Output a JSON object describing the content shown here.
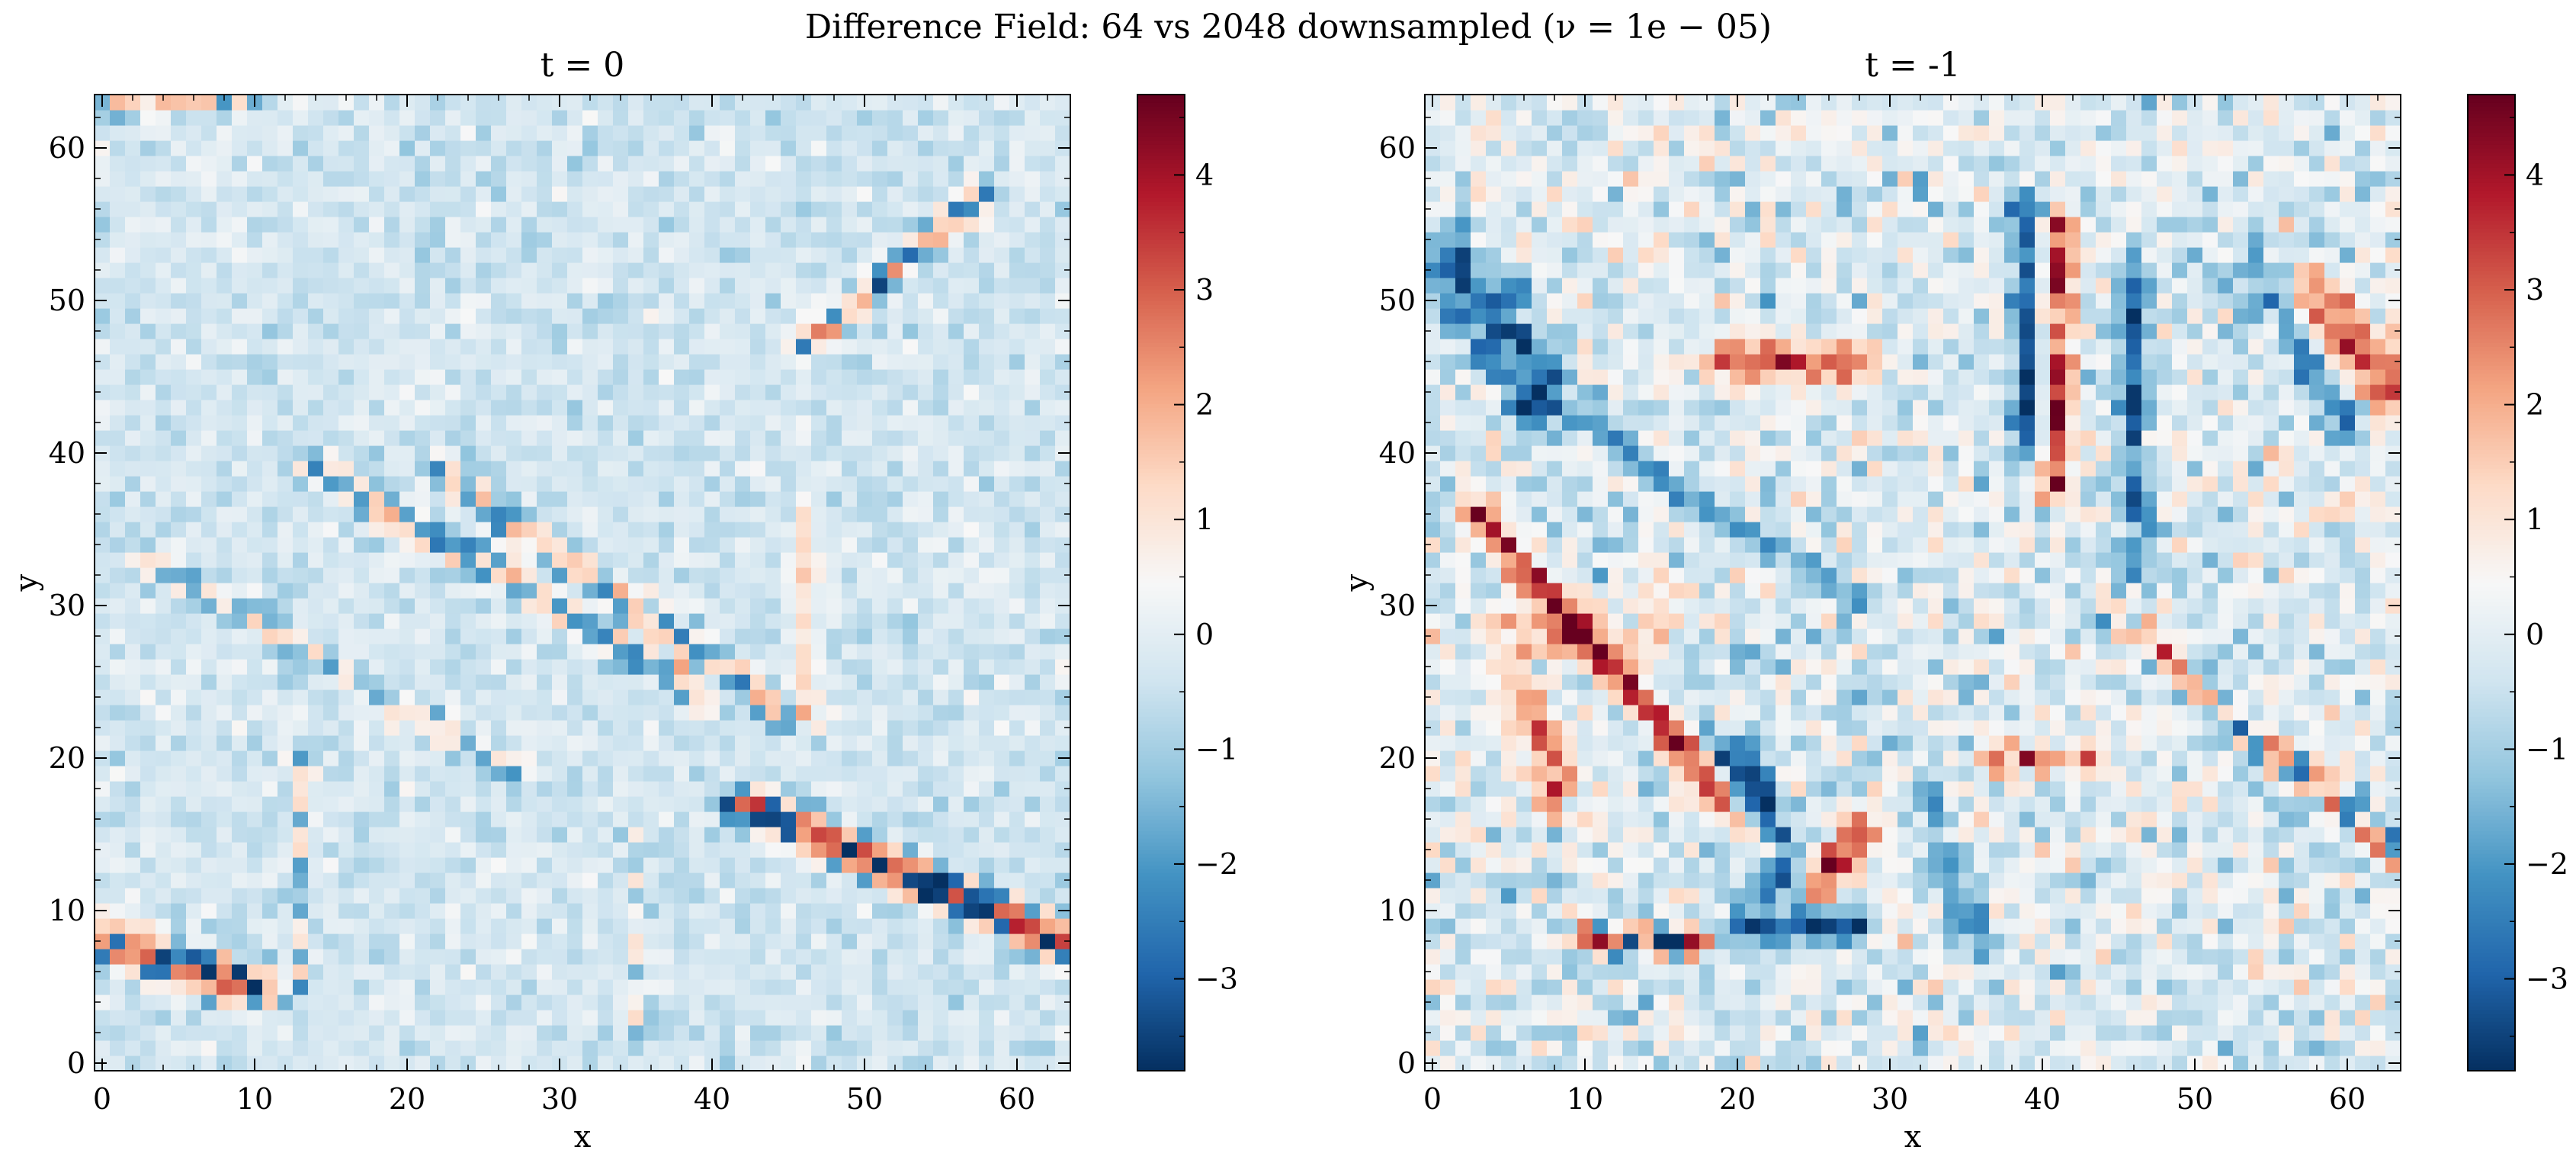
{
  "figure": {
    "suptitle": "Difference Field: 64 vs 2048 downsampled (ν = 1e − 05)"
  },
  "colors": {
    "colormap": "RdBu_r",
    "stops": [
      "#053061",
      "#2166ac",
      "#4393c3",
      "#92c5de",
      "#d1e5f0",
      "#f7f7f7",
      "#fddbc7",
      "#f4a582",
      "#d6604d",
      "#b2182b",
      "#67001f"
    ]
  },
  "chart_data": [
    {
      "type": "heatmap",
      "title": "t = 0",
      "xlabel": "x",
      "ylabel": "y",
      "grid_size": [
        64,
        64
      ],
      "xlim": [
        -0.5,
        63.5
      ],
      "ylim": [
        -0.5,
        63.5
      ],
      "xticks": [
        0,
        10,
        20,
        30,
        40,
        50,
        60
      ],
      "yticks": [
        0,
        10,
        20,
        30,
        40,
        50,
        60
      ],
      "colorbar": {
        "vmin": -3.8,
        "vmax": 4.7,
        "ticks": [
          -3,
          -2,
          -1,
          0,
          1,
          2,
          3,
          4
        ],
        "tick_labels": [
          "−3",
          "−2",
          "−1",
          "0",
          "1",
          "2",
          "3",
          "4"
        ]
      },
      "features": [
        {
          "kind": "ridge",
          "from": [
            0,
            8
          ],
          "to": [
            10,
            5
          ],
          "width": 1.2,
          "amp": 3.6,
          "polarity": "mixed"
        },
        {
          "kind": "ridge",
          "from": [
            42,
            17
          ],
          "to": [
            63,
            8
          ],
          "width": 1.0,
          "amp": 4.2,
          "polarity": "mixed"
        },
        {
          "kind": "ridge",
          "from": [
            14,
            39
          ],
          "to": [
            40,
            24
          ],
          "width": 0.9,
          "amp": 2.2,
          "polarity": "mixed"
        },
        {
          "kind": "ridge",
          "from": [
            22,
            39
          ],
          "to": [
            46,
            22
          ],
          "width": 0.9,
          "amp": 2.2,
          "polarity": "mixed"
        },
        {
          "kind": "ridge",
          "from": [
            3,
            33
          ],
          "to": [
            27,
            19
          ],
          "width": 0.8,
          "amp": 1.6,
          "polarity": "mixed"
        },
        {
          "kind": "ridge",
          "from": [
            46,
            47
          ],
          "to": [
            58,
            57
          ],
          "width": 0.8,
          "amp": 2.6,
          "polarity": "mixed"
        },
        {
          "kind": "ridge",
          "from": [
            46,
            36
          ],
          "to": [
            46,
            22
          ],
          "width": 0.6,
          "amp": 2.0,
          "polarity": "pos"
        },
        {
          "kind": "ridge",
          "from": [
            35,
            15
          ],
          "to": [
            35,
            2
          ],
          "width": 0.6,
          "amp": 1.2,
          "polarity": "mixed"
        },
        {
          "kind": "ridge",
          "from": [
            13,
            20
          ],
          "to": [
            13,
            5
          ],
          "width": 0.6,
          "amp": 1.6,
          "polarity": "mixed"
        },
        {
          "kind": "ridge",
          "from": [
            0,
            63
          ],
          "to": [
            10,
            63
          ],
          "width": 0.7,
          "amp": 2.0,
          "polarity": "mixed"
        }
      ],
      "background": {
        "bias": -0.35,
        "noise": 0.55
      },
      "seed": 7
    },
    {
      "type": "heatmap",
      "title": "t = -1",
      "xlabel": "x",
      "ylabel": "y",
      "grid_size": [
        64,
        64
      ],
      "xlim": [
        -0.5,
        63.5
      ],
      "ylim": [
        -0.5,
        63.5
      ],
      "xticks": [
        0,
        10,
        20,
        30,
        40,
        50,
        60
      ],
      "yticks": [
        0,
        10,
        20,
        30,
        40,
        50,
        60
      ],
      "colorbar": {
        "vmin": -3.8,
        "vmax": 4.7,
        "ticks": [
          -3,
          -2,
          -1,
          0,
          1,
          2,
          3,
          4
        ],
        "tick_labels": [
          "−3",
          "−2",
          "−1",
          "0",
          "1",
          "2",
          "3",
          "4"
        ]
      },
      "features": [
        {
          "kind": "ridge",
          "from": [
            3,
            36
          ],
          "to": [
            22,
            14
          ],
          "width": 0.7,
          "amp": 4.3,
          "polarity": "pos"
        },
        {
          "kind": "ridge",
          "from": [
            20,
            20
          ],
          "to": [
            24,
            10
          ],
          "width": 1.2,
          "amp": 4.0,
          "polarity": "neg"
        },
        {
          "kind": "ridge",
          "from": [
            24,
            10
          ],
          "to": [
            28,
            15
          ],
          "width": 1.0,
          "amp": 4.3,
          "polarity": "pos"
        },
        {
          "kind": "ridge",
          "from": [
            20,
            9
          ],
          "to": [
            28,
            9
          ],
          "width": 0.8,
          "amp": 3.5,
          "polarity": "neg"
        },
        {
          "kind": "ridge",
          "from": [
            10,
            8
          ],
          "to": [
            17,
            8
          ],
          "width": 0.7,
          "amp": 3.8,
          "polarity": "mixed"
        },
        {
          "kind": "ridge",
          "from": [
            41,
            55
          ],
          "to": [
            41,
            38
          ],
          "width": 0.8,
          "amp": 4.3,
          "polarity": "pos"
        },
        {
          "kind": "ridge",
          "from": [
            39,
            56
          ],
          "to": [
            39,
            40
          ],
          "width": 0.8,
          "amp": 3.8,
          "polarity": "neg"
        },
        {
          "kind": "ridge",
          "from": [
            2,
            52
          ],
          "to": [
            7,
            44
          ],
          "width": 1.6,
          "amp": 3.6,
          "polarity": "neg"
        },
        {
          "kind": "ridge",
          "from": [
            19,
            46
          ],
          "to": [
            28,
            46
          ],
          "width": 1.0,
          "amp": 3.2,
          "polarity": "pos"
        },
        {
          "kind": "ridge",
          "from": [
            58,
            50
          ],
          "to": [
            63,
            44
          ],
          "width": 1.6,
          "amp": 3.8,
          "polarity": "pos"
        },
        {
          "kind": "ridge",
          "from": [
            54,
            52
          ],
          "to": [
            60,
            42
          ],
          "width": 1.0,
          "amp": 3.0,
          "polarity": "neg"
        },
        {
          "kind": "ridge",
          "from": [
            46,
            52
          ],
          "to": [
            46,
            32
          ],
          "width": 0.7,
          "amp": 2.8,
          "polarity": "neg"
        },
        {
          "kind": "ridge",
          "from": [
            44,
            30
          ],
          "to": [
            63,
            14
          ],
          "width": 0.8,
          "amp": 2.6,
          "polarity": "mixed"
        },
        {
          "kind": "ridge",
          "from": [
            37,
            20
          ],
          "to": [
            43,
            20
          ],
          "width": 0.7,
          "amp": 3.6,
          "polarity": "pos"
        },
        {
          "kind": "ridge",
          "from": [
            6,
            24
          ],
          "to": [
            8,
            18
          ],
          "width": 1.2,
          "amp": 2.6,
          "polarity": "pos"
        },
        {
          "kind": "ridge",
          "from": [
            10,
            42
          ],
          "to": [
            28,
            30
          ],
          "width": 0.7,
          "amp": 2.4,
          "polarity": "neg"
        },
        {
          "kind": "ridge",
          "from": [
            32,
            18
          ],
          "to": [
            36,
            8
          ],
          "width": 0.7,
          "amp": 2.4,
          "polarity": "neg"
        },
        {
          "kind": "ridge",
          "from": [
            5,
            28
          ],
          "to": [
            14,
            28
          ],
          "width": 1.4,
          "amp": 1.8,
          "polarity": "pos"
        }
      ],
      "background": {
        "bias": -0.1,
        "noise": 1.15
      },
      "seed": 21
    }
  ]
}
